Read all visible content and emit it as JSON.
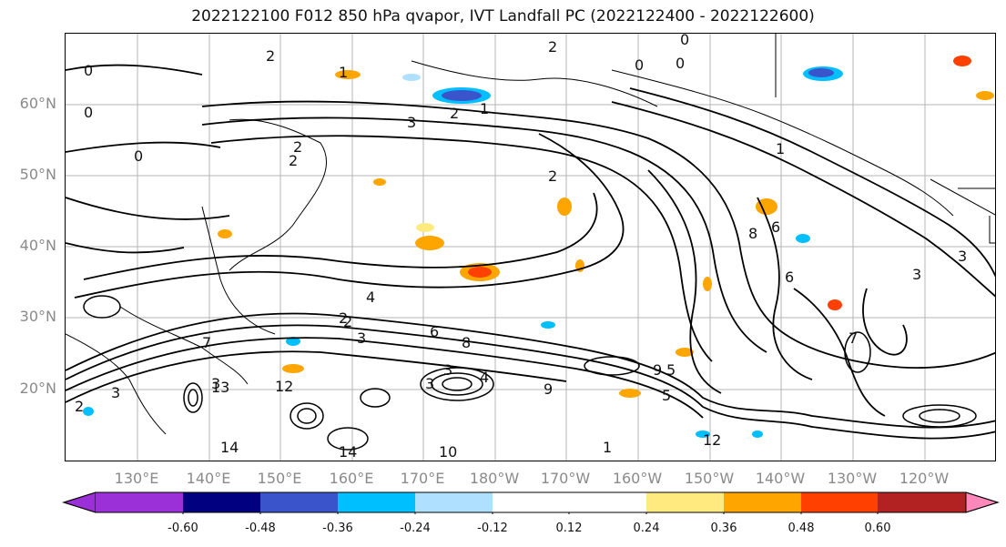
{
  "title": "2022122100 F012 850 hPa qvapor, IVT Landfall PC (2022122400 - 2022122600)",
  "map": {
    "lat_labels": [
      "60°N",
      "50°N",
      "40°N",
      "30°N",
      "20°N"
    ],
    "lon_labels": [
      "130°E",
      "140°E",
      "150°E",
      "160°E",
      "170°E",
      "180°W",
      "170°W",
      "160°W",
      "150°W",
      "140°W",
      "130°W",
      "120°W"
    ],
    "contour_labels": [
      "0",
      "0",
      "0",
      "1",
      "2",
      "3",
      "2",
      "2",
      "1",
      "0",
      "2",
      "3",
      "2",
      "0",
      "0",
      "4",
      "2",
      "3",
      "6",
      "8",
      "4",
      "6",
      "9",
      "5",
      "3",
      "1",
      "3",
      "3",
      "3",
      "2",
      "12",
      "13",
      "14",
      "14",
      "9",
      "12",
      "7",
      "8",
      "6",
      "2",
      "2",
      "7",
      "10",
      "3",
      "5",
      "1"
    ]
  },
  "colorbar": {
    "colors": [
      "#9b30d9",
      "#000080",
      "#3a54cc",
      "#00bfff",
      "#b0e0ff",
      "#ffffff",
      "#ffffff",
      "#ffea80",
      "#ffa500",
      "#ff4000",
      "#b22222",
      "#ff88bb"
    ],
    "tick_labels": [
      "-0.60",
      "-0.48",
      "-0.36",
      "-0.24",
      "-0.12",
      "0.12",
      "0.24",
      "0.36",
      "0.48",
      "0.60"
    ]
  }
}
